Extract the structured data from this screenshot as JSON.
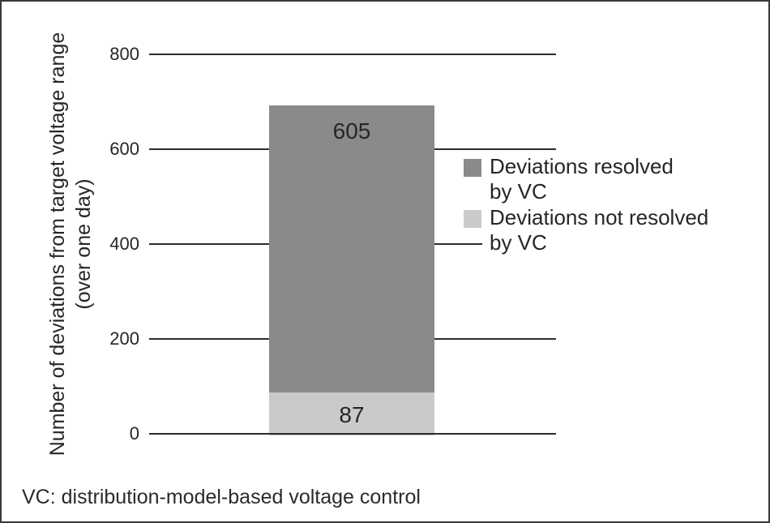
{
  "chart_data": {
    "type": "bar",
    "stacked": true,
    "categories": [
      ""
    ],
    "series": [
      {
        "name": "Deviations resolved by VC",
        "values": [
          605
        ],
        "color": "#8a8a8a"
      },
      {
        "name": "Deviations not resolved by VC",
        "values": [
          87
        ],
        "color": "#cacaca"
      }
    ],
    "total": 692,
    "title": "",
    "xlabel": "",
    "ylabel": "Number of deviations from target voltage range (over one day)",
    "ylim": [
      0,
      800
    ],
    "yticks": [
      0,
      200,
      400,
      600,
      800
    ],
    "grid": "horizontal",
    "legend_position": "right",
    "footnote": "VC: distribution-model-based voltage control"
  },
  "y_axis": {
    "label_line1": "Number of deviations from target voltage range",
    "label_line2": "(over one day)",
    "ticks": [
      "800",
      "600",
      "400",
      "200",
      "0"
    ]
  },
  "bar": {
    "resolved_label": "605",
    "not_resolved_label": "87"
  },
  "legend": {
    "items": [
      {
        "line1": "Deviations resolved",
        "line2": "by VC",
        "color": "#8a8a8a"
      },
      {
        "line1": "Deviations not resolved",
        "line2": "by VC",
        "color": "#cacaca"
      }
    ]
  },
  "footnote": "VC: distribution-model-based voltage control",
  "colors": {
    "resolved_bar": "#8a8a8a",
    "not_resolved_bar": "#cacaca",
    "gridline": "#2d2d2d",
    "text": "#262626",
    "border": "#3d3836",
    "background": "#ffffff"
  }
}
